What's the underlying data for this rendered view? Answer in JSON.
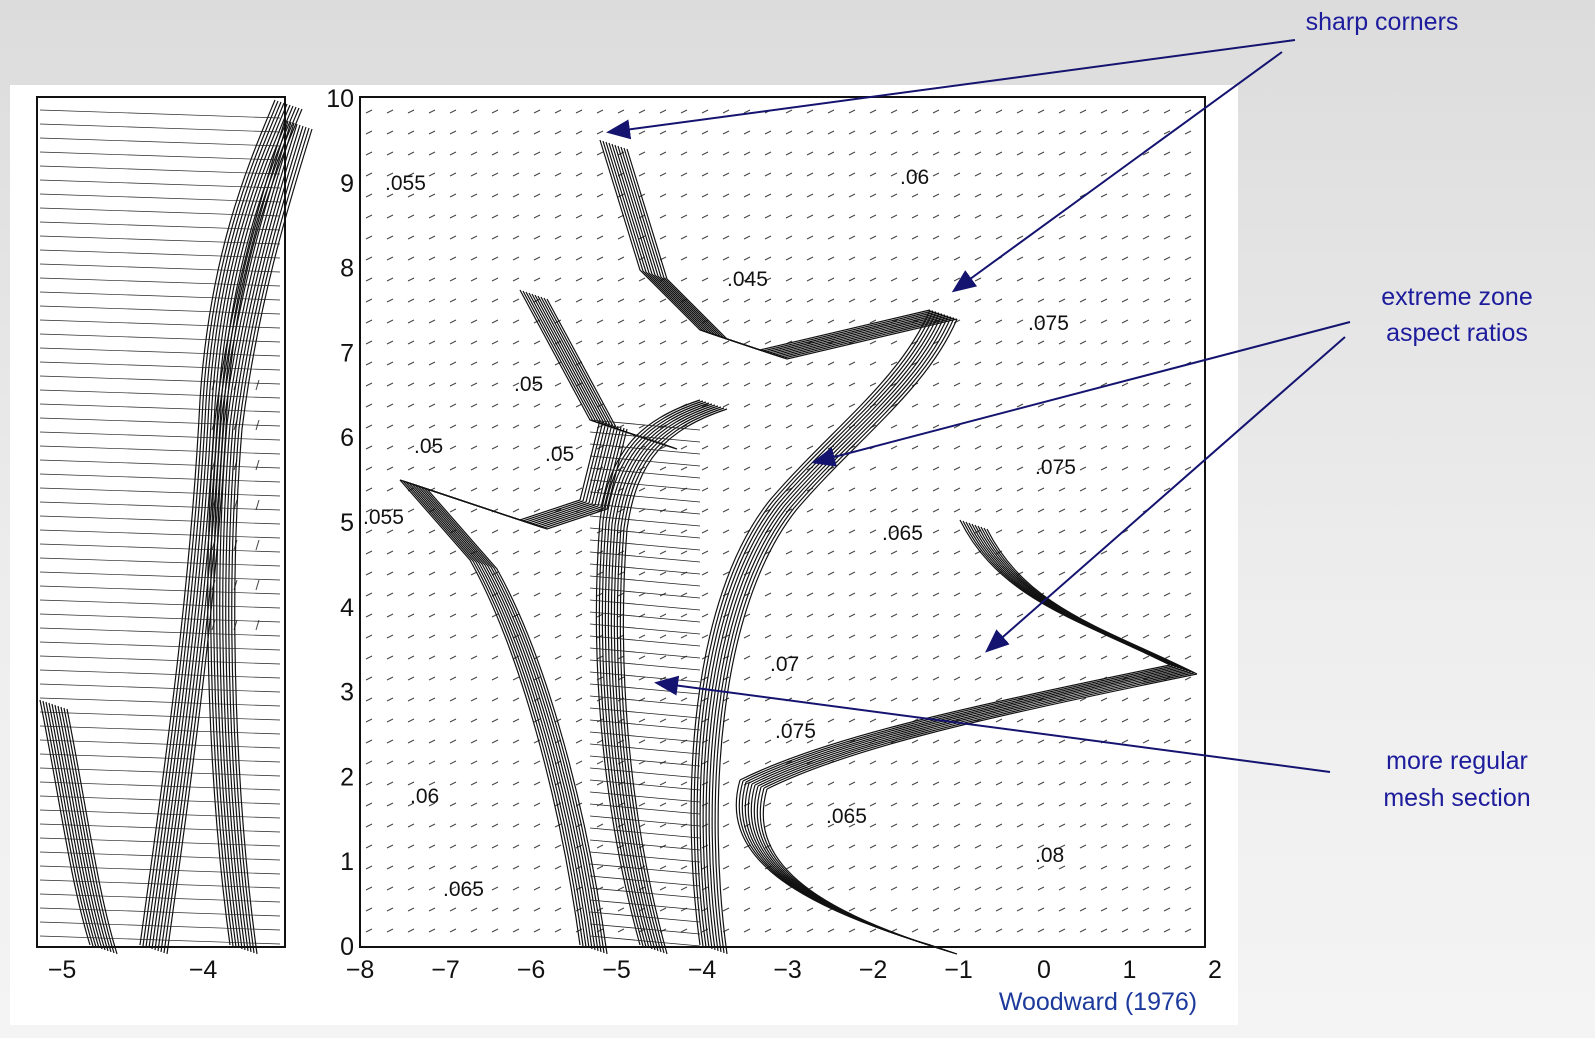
{
  "annotations": {
    "sharp_corners": "sharp corners",
    "extreme_zone": [
      "extreme zone",
      "aspect ratios"
    ],
    "regular_mesh": [
      "more regular",
      "mesh section"
    ]
  },
  "figure": {
    "left_panel": {
      "x_ticks": [
        "−5",
        "−4"
      ]
    },
    "right_panel": {
      "x_ticks": [
        "−8",
        "−7",
        "−6",
        "−5",
        "−4",
        "−3",
        "−2",
        "−1",
        "0",
        "1",
        "2"
      ],
      "y_ticks": [
        "0",
        "1",
        "2",
        "3",
        "4",
        "5",
        "6",
        "7",
        "8",
        "9",
        "10"
      ],
      "contour_labels": [
        ".055",
        ".06",
        ".045",
        ".075",
        ".05",
        ".05",
        ".05",
        ".075",
        ".055",
        ".065",
        ".07",
        ".075",
        ".06",
        ".065",
        ".08",
        ".065"
      ]
    }
  },
  "credit": "Woodward (1976)"
}
